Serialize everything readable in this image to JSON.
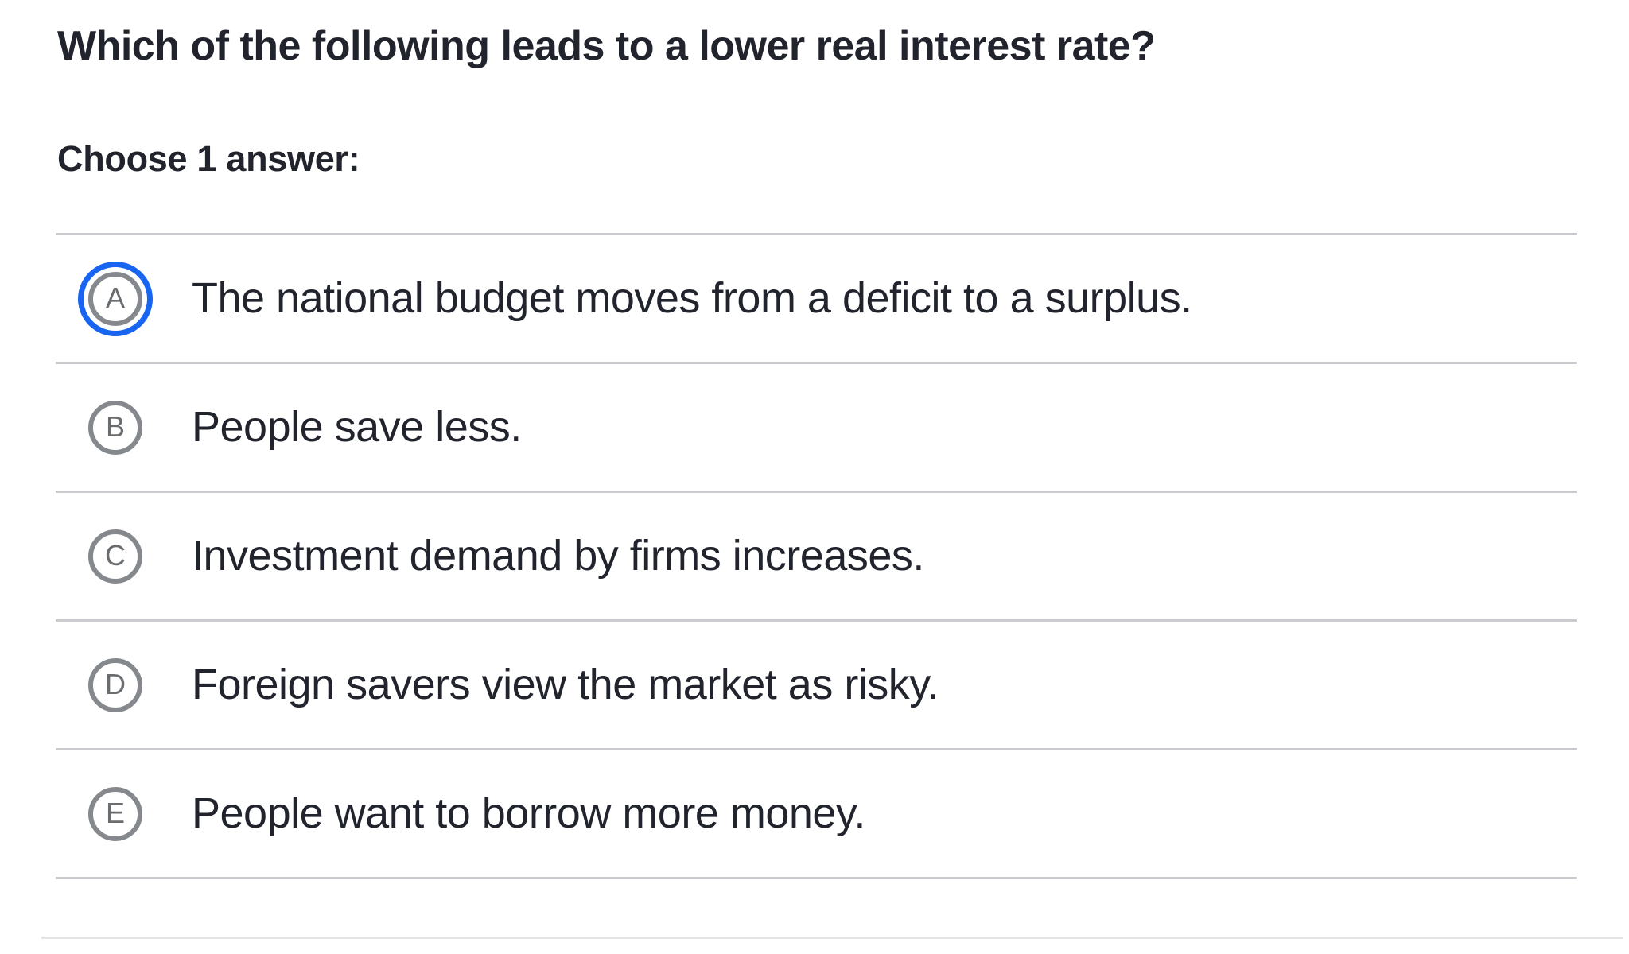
{
  "question": {
    "title": "Which of the following leads to a lower real interest rate?",
    "instruction": "Choose 1 answer:"
  },
  "options": [
    {
      "letter": "A",
      "text": "The national budget moves from a deficit to a surplus."
    },
    {
      "letter": "B",
      "text": "People save less."
    },
    {
      "letter": "C",
      "text": "Investment demand by firms increases."
    },
    {
      "letter": "D",
      "text": "Foreign savers view the market as risky."
    },
    {
      "letter": "E",
      "text": "People want to borrow more money."
    }
  ],
  "selected_option": "A",
  "colors": {
    "accent_blue": "#1865F2",
    "text_dark": "#21242C",
    "radio_border_gray": "#85888C",
    "radio_letter_gray": "#6A6D70",
    "divider_gray": "#C9CBCE",
    "bottom_divider_light": "#E3E4E6"
  }
}
